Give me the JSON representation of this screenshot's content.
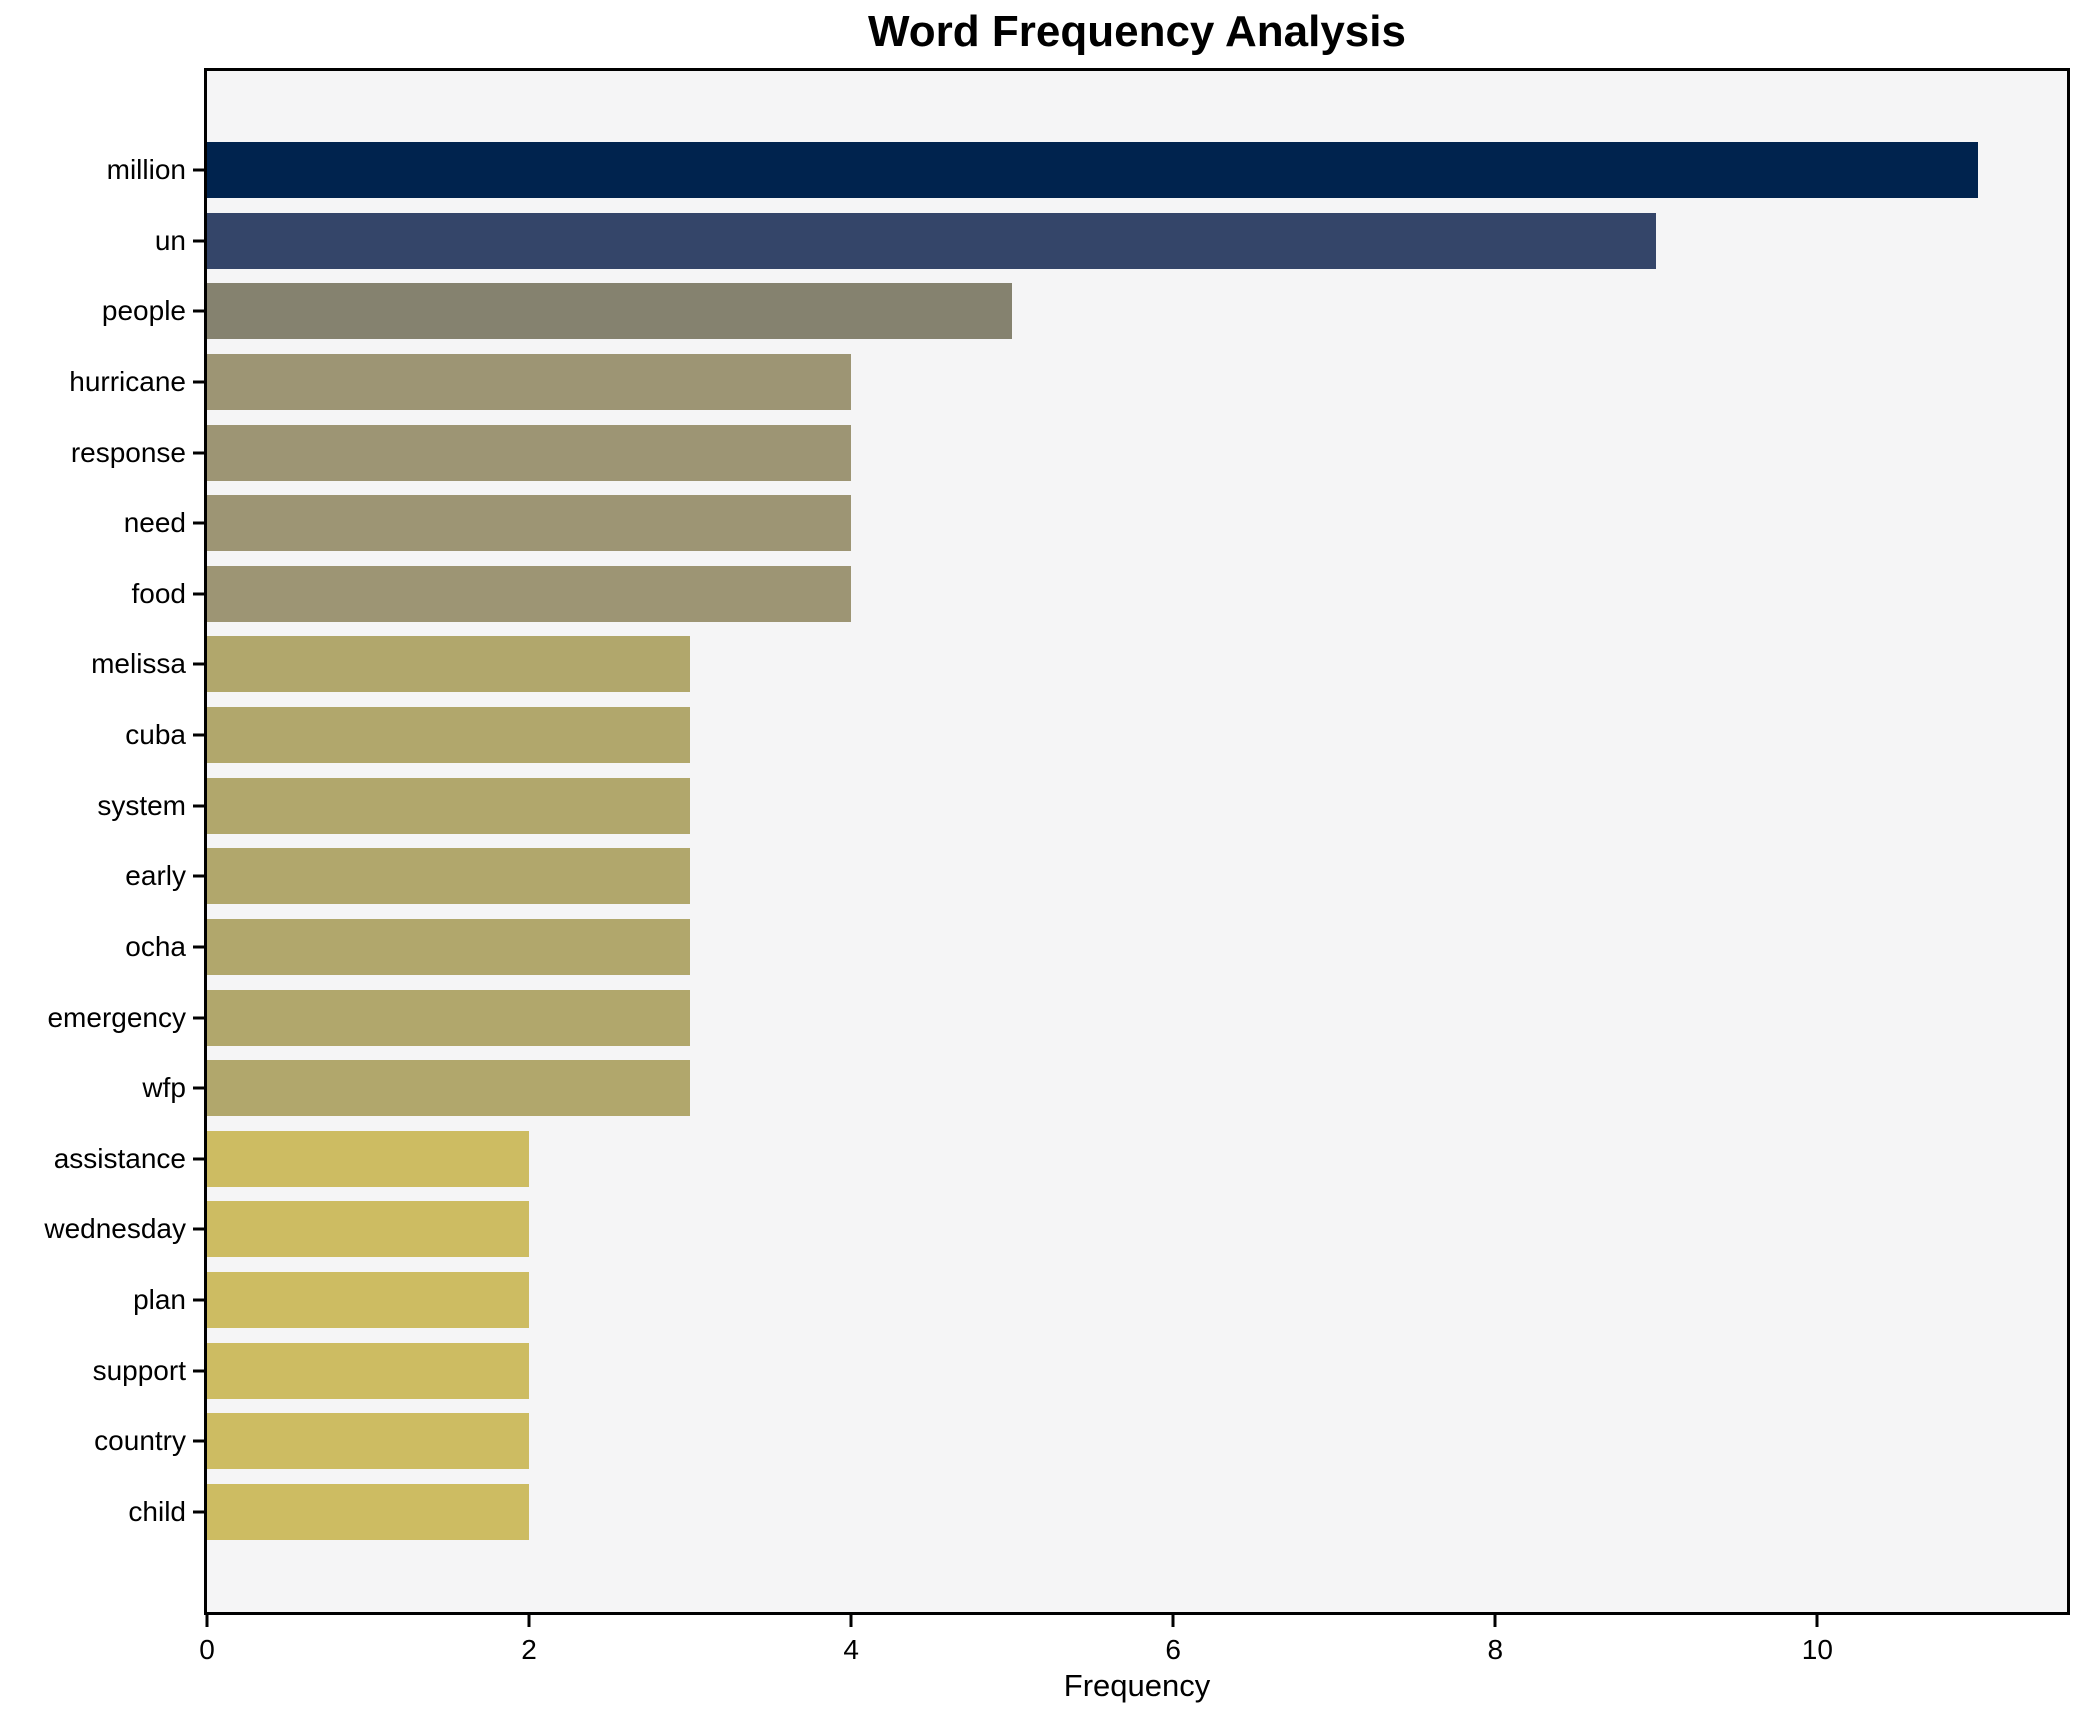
{
  "chart_data": {
    "type": "bar",
    "orientation": "horizontal",
    "title": "Word Frequency Analysis",
    "xlabel": "Frequency",
    "ylabel": "",
    "categories": [
      "million",
      "un",
      "people",
      "hurricane",
      "response",
      "need",
      "food",
      "melissa",
      "cuba",
      "system",
      "early",
      "ocha",
      "emergency",
      "wfp",
      "assistance",
      "wednesday",
      "plan",
      "support",
      "country",
      "child"
    ],
    "values": [
      11,
      9,
      5,
      4,
      4,
      4,
      4,
      3,
      3,
      3,
      3,
      3,
      3,
      3,
      2,
      2,
      2,
      2,
      2,
      2
    ],
    "bar_colors": [
      "#00234e",
      "#344569",
      "#85826f",
      "#9d9574",
      "#9d9574",
      "#9d9574",
      "#9d9574",
      "#b1a76c",
      "#b1a76c",
      "#b1a76c",
      "#b1a76c",
      "#b1a76c",
      "#b1a76c",
      "#b1a76c",
      "#cdbc62",
      "#cdbc62",
      "#cdbc62",
      "#cdbc62",
      "#cdbc62",
      "#cdbc62"
    ],
    "x_ticks": [
      0,
      2,
      4,
      6,
      8,
      10
    ],
    "xlim": [
      0,
      11.55
    ],
    "grid": false,
    "legend": false,
    "plot_background": "#f5f5f6",
    "figure_background": "#ffffff",
    "spine_color": "#000000"
  }
}
